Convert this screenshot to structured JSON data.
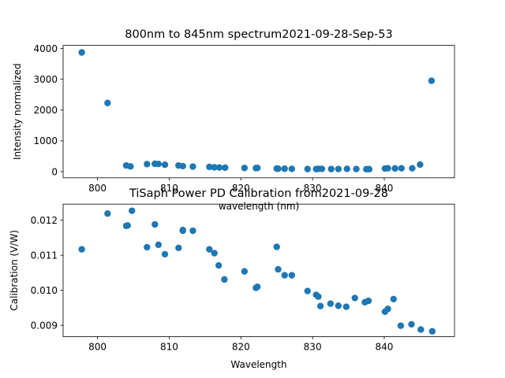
{
  "colors": {
    "marker": "#1f77b4",
    "axes": "#000000",
    "background": "#ffffff"
  },
  "chart_data": [
    {
      "type": "scatter",
      "title": "800nm to 845nm spectrum2021-09-28-Sep-53",
      "xlabel": "wavelength (nm)",
      "ylabel": "Intensity normalized",
      "xlim": [
        795.2,
        849.8
      ],
      "ylim": [
        -200,
        4100
      ],
      "grid": false,
      "xticks": [
        800,
        810,
        820,
        830,
        840
      ],
      "xtick_labels": [
        "800",
        "810",
        "820",
        "830",
        "840"
      ],
      "yticks": [
        0,
        1000,
        2000,
        3000,
        4000
      ],
      "ytick_labels": [
        "0",
        "1000",
        "2000",
        "3000",
        "4000"
      ],
      "series": [
        {
          "x": [
            797.8,
            801.4,
            804.0,
            804.6,
            806.9,
            808.0,
            808.5,
            809.4,
            811.3,
            811.9,
            813.3,
            815.6,
            816.3,
            817.0,
            817.8,
            820.5,
            822.1,
            822.3,
            825.0,
            825.2,
            826.1,
            827.1,
            829.3,
            830.5,
            830.8,
            831.3,
            832.6,
            833.6,
            834.8,
            836.1,
            837.5,
            837.9,
            840.1,
            840.5,
            841.5,
            842.4,
            843.9,
            845.0,
            846.6
          ],
          "y": [
            3870,
            2230,
            200,
            170,
            245,
            255,
            250,
            225,
            200,
            180,
            165,
            155,
            140,
            135,
            130,
            120,
            115,
            120,
            100,
            95,
            95,
            90,
            85,
            85,
            90,
            90,
            85,
            85,
            90,
            85,
            80,
            80,
            100,
            110,
            105,
            110,
            110,
            230,
            2950
          ]
        }
      ]
    },
    {
      "type": "scatter",
      "title": "TiSaph Power PD Calibration from2021-09-28",
      "xlabel": "Wavelength",
      "ylabel": "Calibration (V/W)",
      "xlim": [
        795.2,
        849.8
      ],
      "ylim": [
        0.00868,
        0.01246
      ],
      "grid": false,
      "xticks": [
        800,
        810,
        820,
        830,
        840
      ],
      "xtick_labels": [
        "800",
        "810",
        "820",
        "830",
        "840"
      ],
      "yticks": [
        0.009,
        0.01,
        0.011,
        0.012
      ],
      "ytick_labels": [
        "0.009",
        "0.010",
        "0.011",
        "0.012"
      ],
      "series": [
        {
          "x": [
            797.8,
            801.4,
            804.0,
            804.2,
            804.8,
            806.9,
            808.0,
            808.5,
            809.4,
            811.3,
            811.9,
            811.9,
            813.3,
            815.6,
            816.3,
            816.9,
            817.7,
            820.5,
            822.1,
            822.3,
            825.0,
            825.2,
            826.1,
            827.1,
            829.3,
            830.5,
            830.8,
            831.1,
            832.5,
            833.6,
            834.7,
            835.9,
            837.3,
            837.8,
            840.1,
            840.5,
            841.3,
            842.3,
            843.8,
            845.1,
            846.7
          ],
          "y": [
            0.01117,
            0.01219,
            0.01184,
            0.01185,
            0.01227,
            0.01123,
            0.01188,
            0.0113,
            0.01103,
            0.01121,
            0.01172,
            0.0117,
            0.0117,
            0.01117,
            0.01106,
            0.01071,
            0.01031,
            0.01054,
            0.01007,
            0.0101,
            0.01124,
            0.0106,
            0.01043,
            0.01043,
            0.00998,
            0.00987,
            0.00982,
            0.00955,
            0.00962,
            0.00956,
            0.00953,
            0.00978,
            0.00966,
            0.0097,
            0.00939,
            0.00947,
            0.00975,
            0.00899,
            0.00903,
            0.00888,
            0.00883
          ]
        }
      ]
    }
  ]
}
